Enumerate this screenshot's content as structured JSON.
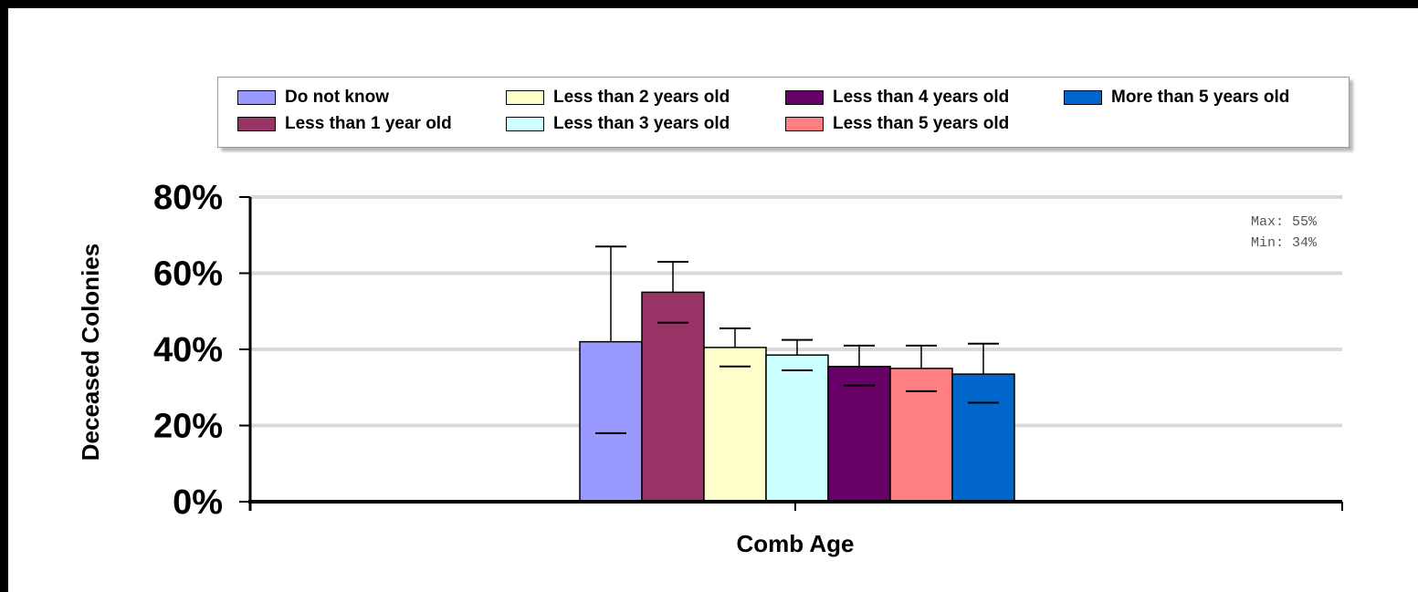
{
  "chart_data": {
    "type": "bar",
    "xlabel": "Comb Age",
    "ylabel": "Deceased Colonies",
    "ylim": [
      0,
      80
    ],
    "y_ticks": [
      "0%",
      "20%",
      "40%",
      "60%",
      "80%"
    ],
    "y_tick_values": [
      0,
      20,
      40,
      60,
      80
    ],
    "grid": true,
    "legend_position": "top",
    "annotations": [
      "Max: 55%",
      "Min: 34%"
    ],
    "series": [
      {
        "name": "Do not know",
        "value": 42,
        "error_high": 67,
        "error_low": 18,
        "color": "#9999ff"
      },
      {
        "name": "Less than 1 year old",
        "value": 55,
        "error_high": 63,
        "error_low": 47,
        "color": "#993366"
      },
      {
        "name": "Less than 2 years old",
        "value": 40.5,
        "error_high": 45.5,
        "error_low": 35.5,
        "color": "#ffffcc"
      },
      {
        "name": "Less than 3 years old",
        "value": 38.5,
        "error_high": 42.5,
        "error_low": 34.5,
        "color": "#ccffff"
      },
      {
        "name": "Less than 4 years old",
        "value": 35.5,
        "error_high": 41,
        "error_low": 30.5,
        "color": "#660066"
      },
      {
        "name": "Less than 5 years old",
        "value": 35,
        "error_high": 41,
        "error_low": 29,
        "color": "#ff8080"
      },
      {
        "name": "More than 5 years old",
        "value": 33.5,
        "error_high": 41.5,
        "error_low": 26,
        "color": "#0066cc"
      }
    ]
  }
}
